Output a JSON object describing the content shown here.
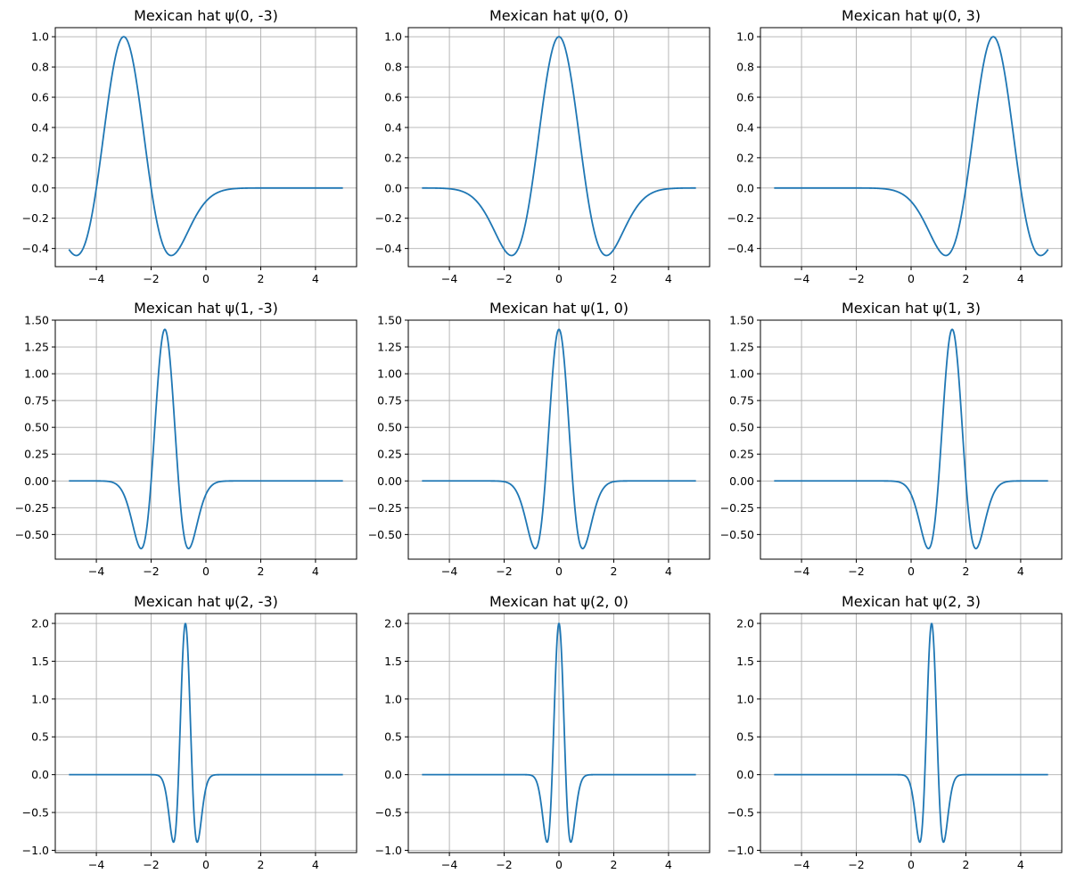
{
  "chart_data": [
    {
      "type": "line",
      "title": "Mexican hat  ψ(0, -3)",
      "j": 0,
      "k": -3,
      "x_range": [
        -5,
        5
      ],
      "ylim": [
        -0.52,
        1.06
      ],
      "xticks": [
        -4,
        -2,
        0,
        2,
        4
      ],
      "xtick_labels": [
        "−4",
        "−2",
        "0",
        "2",
        "4"
      ],
      "yticks": [
        -0.4,
        -0.2,
        0.0,
        0.2,
        0.4,
        0.6,
        0.8,
        1.0
      ],
      "ytick_labels": [
        "−0.4",
        "−0.2",
        "0.0",
        "0.2",
        "0.4",
        "0.6",
        "0.8",
        "1.0"
      ],
      "peak": {
        "x": -3,
        "y": 1.0
      },
      "minima": [
        {
          "x": -4.73,
          "y": -0.446
        },
        {
          "x": -1.27,
          "y": -0.446
        }
      ],
      "grid": true
    },
    {
      "type": "line",
      "title": "Mexican hat  ψ(0, 0)",
      "j": 0,
      "k": 0,
      "x_range": [
        -5,
        5
      ],
      "ylim": [
        -0.52,
        1.06
      ],
      "xticks": [
        -4,
        -2,
        0,
        2,
        4
      ],
      "xtick_labels": [
        "−4",
        "−2",
        "0",
        "2",
        "4"
      ],
      "yticks": [
        -0.4,
        -0.2,
        0.0,
        0.2,
        0.4,
        0.6,
        0.8,
        1.0
      ],
      "ytick_labels": [
        "−0.4",
        "−0.2",
        "0.0",
        "0.2",
        "0.4",
        "0.6",
        "0.8",
        "1.0"
      ],
      "peak": {
        "x": 0,
        "y": 1.0
      },
      "minima": [
        {
          "x": -1.73,
          "y": -0.446
        },
        {
          "x": 1.73,
          "y": -0.446
        }
      ],
      "grid": true
    },
    {
      "type": "line",
      "title": "Mexican hat  ψ(0, 3)",
      "j": 0,
      "k": 3,
      "x_range": [
        -5,
        5
      ],
      "ylim": [
        -0.52,
        1.06
      ],
      "xticks": [
        -4,
        -2,
        0,
        2,
        4
      ],
      "xtick_labels": [
        "−4",
        "−2",
        "0",
        "2",
        "4"
      ],
      "yticks": [
        -0.4,
        -0.2,
        0.0,
        0.2,
        0.4,
        0.6,
        0.8,
        1.0
      ],
      "ytick_labels": [
        "−0.4",
        "−0.2",
        "0.0",
        "0.2",
        "0.4",
        "0.6",
        "0.8",
        "1.0"
      ],
      "peak": {
        "x": 3,
        "y": 1.0
      },
      "minima": [
        {
          "x": 1.27,
          "y": -0.446
        },
        {
          "x": 4.73,
          "y": -0.446
        }
      ],
      "grid": true
    },
    {
      "type": "line",
      "title": "Mexican hat  ψ(1, -3)",
      "j": 1,
      "k": -3,
      "x_range": [
        -5,
        5
      ],
      "ylim": [
        -0.73,
        1.5
      ],
      "xticks": [
        -4,
        -2,
        0,
        2,
        4
      ],
      "xtick_labels": [
        "−4",
        "−2",
        "0",
        "2",
        "4"
      ],
      "yticks": [
        -0.5,
        -0.25,
        0.0,
        0.25,
        0.5,
        0.75,
        1.0,
        1.25,
        1.5
      ],
      "ytick_labels": [
        "−0.50",
        "−0.25",
        "0.00",
        "0.25",
        "0.50",
        "0.75",
        "1.00",
        "1.25",
        "1.50"
      ],
      "peak": {
        "x": -1.5,
        "y": 1.414
      },
      "minima": [
        {
          "x": -2.37,
          "y": -0.631
        },
        {
          "x": -0.63,
          "y": -0.631
        }
      ],
      "grid": true
    },
    {
      "type": "line",
      "title": "Mexican hat  ψ(1, 0)",
      "j": 1,
      "k": 0,
      "x_range": [
        -5,
        5
      ],
      "ylim": [
        -0.73,
        1.5
      ],
      "xticks": [
        -4,
        -2,
        0,
        2,
        4
      ],
      "xtick_labels": [
        "−4",
        "−2",
        "0",
        "2",
        "4"
      ],
      "yticks": [
        -0.5,
        -0.25,
        0.0,
        0.25,
        0.5,
        0.75,
        1.0,
        1.25,
        1.5
      ],
      "ytick_labels": [
        "−0.50",
        "−0.25",
        "0.00",
        "0.25",
        "0.50",
        "0.75",
        "1.00",
        "1.25",
        "1.50"
      ],
      "peak": {
        "x": 0,
        "y": 1.414
      },
      "minima": [
        {
          "x": -0.87,
          "y": -0.631
        },
        {
          "x": 0.87,
          "y": -0.631
        }
      ],
      "grid": true
    },
    {
      "type": "line",
      "title": "Mexican hat  ψ(1, 3)",
      "j": 1,
      "k": 3,
      "x_range": [
        -5,
        5
      ],
      "ylim": [
        -0.73,
        1.5
      ],
      "xticks": [
        -4,
        -2,
        0,
        2,
        4
      ],
      "xtick_labels": [
        "−4",
        "−2",
        "0",
        "2",
        "4"
      ],
      "yticks": [
        -0.5,
        -0.25,
        0.0,
        0.25,
        0.5,
        0.75,
        1.0,
        1.25,
        1.5
      ],
      "ytick_labels": [
        "−0.50",
        "−0.25",
        "0.00",
        "0.25",
        "0.50",
        "0.75",
        "1.00",
        "1.25",
        "1.50"
      ],
      "peak": {
        "x": 1.5,
        "y": 1.414
      },
      "minima": [
        {
          "x": 0.63,
          "y": -0.631
        },
        {
          "x": 2.37,
          "y": -0.631
        }
      ],
      "grid": true
    },
    {
      "type": "line",
      "title": "Mexican hat  ψ(2, -3)",
      "j": 2,
      "k": -3,
      "x_range": [
        -5,
        5
      ],
      "ylim": [
        -1.03,
        2.13
      ],
      "xticks": [
        -4,
        -2,
        0,
        2,
        4
      ],
      "xtick_labels": [
        "−4",
        "−2",
        "0",
        "2",
        "4"
      ],
      "yticks": [
        -1.0,
        -0.5,
        0.0,
        0.5,
        1.0,
        1.5,
        2.0
      ],
      "ytick_labels": [
        "−1.0",
        "−0.5",
        "0.0",
        "0.5",
        "1.0",
        "1.5",
        "2.0"
      ],
      "peak": {
        "x": -0.75,
        "y": 2.0
      },
      "minima": [
        {
          "x": -1.18,
          "y": -0.893
        },
        {
          "x": -0.32,
          "y": -0.893
        }
      ],
      "grid": true
    },
    {
      "type": "line",
      "title": "Mexican hat  ψ(2, 0)",
      "j": 2,
      "k": 0,
      "x_range": [
        -5,
        5
      ],
      "ylim": [
        -1.03,
        2.13
      ],
      "xticks": [
        -4,
        -2,
        0,
        2,
        4
      ],
      "xtick_labels": [
        "−4",
        "−2",
        "0",
        "2",
        "4"
      ],
      "yticks": [
        -1.0,
        -0.5,
        0.0,
        0.5,
        1.0,
        1.5,
        2.0
      ],
      "ytick_labels": [
        "−1.0",
        "−0.5",
        "0.0",
        "0.5",
        "1.0",
        "1.5",
        "2.0"
      ],
      "peak": {
        "x": 0,
        "y": 2.0
      },
      "minima": [
        {
          "x": -0.43,
          "y": -0.893
        },
        {
          "x": 0.43,
          "y": -0.893
        }
      ],
      "grid": true
    },
    {
      "type": "line",
      "title": "Mexican hat  ψ(2, 3)",
      "j": 2,
      "k": 3,
      "x_range": [
        -5,
        5
      ],
      "ylim": [
        -1.03,
        2.13
      ],
      "xticks": [
        -4,
        -2,
        0,
        2,
        4
      ],
      "xtick_labels": [
        "−4",
        "−2",
        "0",
        "2",
        "4"
      ],
      "yticks": [
        -1.0,
        -0.5,
        0.0,
        0.5,
        1.0,
        1.5,
        2.0
      ],
      "ytick_labels": [
        "−1.0",
        "−0.5",
        "0.0",
        "0.5",
        "1.0",
        "1.5",
        "2.0"
      ],
      "peak": {
        "x": 0.75,
        "y": 2.0
      },
      "minima": [
        {
          "x": 0.32,
          "y": -0.893
        },
        {
          "x": 1.18,
          "y": -0.893
        }
      ],
      "grid": true
    }
  ],
  "colors": {
    "line": "#1f77b4",
    "grid": "#b0b0b0",
    "background": "#ffffff",
    "text": "#000000"
  }
}
